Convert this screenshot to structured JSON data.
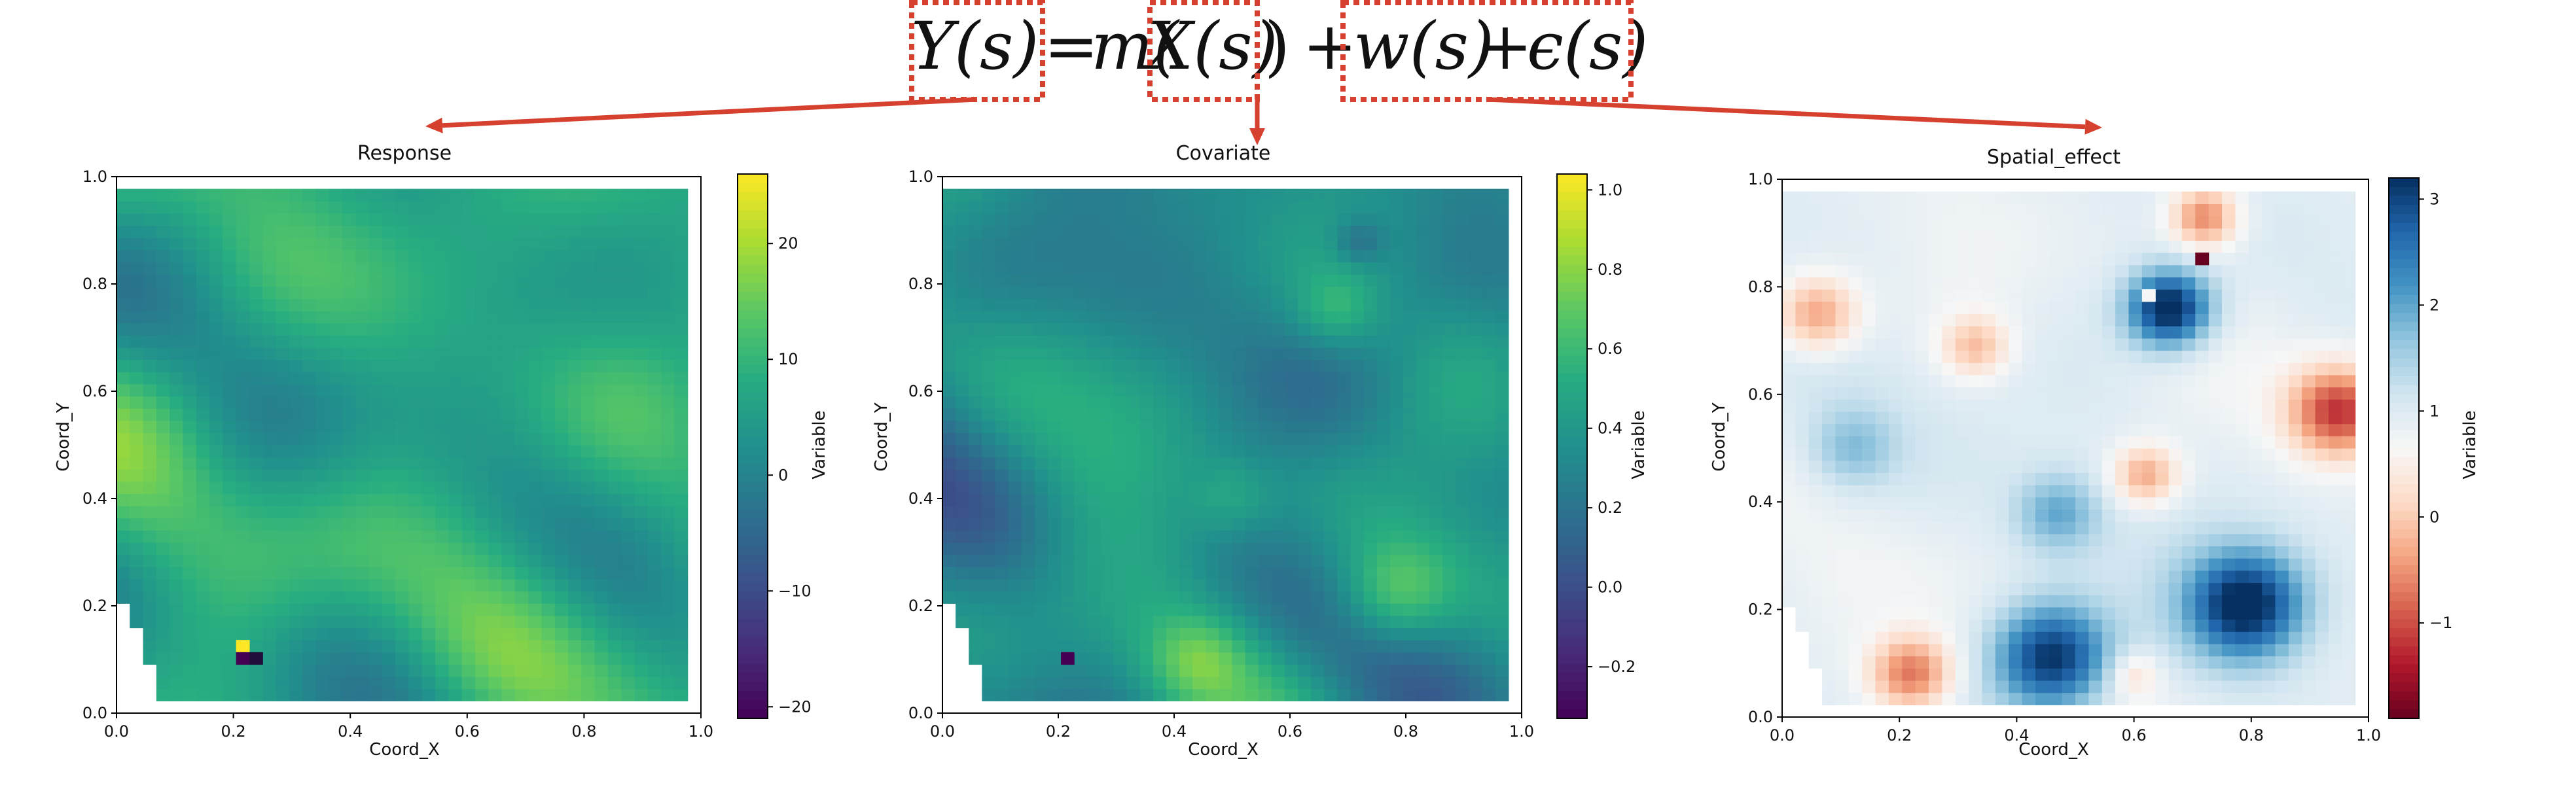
{
  "equation": {
    "parts": [
      "Y(s)",
      "=",
      "m(",
      "X(s)",
      ")",
      "+",
      "w(s)",
      "+",
      "ϵ(s)"
    ],
    "highlight_color": "#d6402f",
    "arrow_color": "#d6402f"
  },
  "chart_data": [
    {
      "type": "heatmap",
      "title": "Response",
      "xlabel": "Coord_X",
      "ylabel": "Coord_Y",
      "xlim": [
        0.0,
        1.0
      ],
      "ylim": [
        0.0,
        1.0
      ],
      "x_ticks": [
        "0.0",
        "0.2",
        "0.4",
        "0.6",
        "0.8",
        "1.0"
      ],
      "y_ticks": [
        "0.0",
        "0.2",
        "0.4",
        "0.6",
        "0.8",
        "1.0"
      ],
      "colormap": "viridis",
      "colorbar": {
        "label": "Variable",
        "range": [
          -21,
          26
        ],
        "ticks": [
          "20",
          "10",
          "0",
          "−10",
          "−20"
        ]
      },
      "grid": false,
      "note_values": {
        "max_cell": 25,
        "min_cell": -20
      }
    },
    {
      "type": "heatmap",
      "title": "Covariate",
      "xlabel": "Coord_X",
      "ylabel": "Coord_Y",
      "xlim": [
        0.0,
        1.0
      ],
      "ylim": [
        0.0,
        1.0
      ],
      "x_ticks": [
        "0.0",
        "0.2",
        "0.4",
        "0.6",
        "0.8",
        "1.0"
      ],
      "y_ticks": [
        "0.0",
        "0.2",
        "0.4",
        "0.6",
        "0.8",
        "1.0"
      ],
      "colormap": "viridis",
      "colorbar": {
        "label": "Variable",
        "range": [
          -0.33,
          1.04
        ],
        "ticks": [
          "1.0",
          "0.8",
          "0.6",
          "0.4",
          "0.2",
          "0.0",
          "−0.2"
        ]
      },
      "grid": false
    },
    {
      "type": "heatmap",
      "title": "Spatial_effect",
      "xlabel": "Coord_X",
      "ylabel": "Coord_Y",
      "xlim": [
        0.0,
        1.0
      ],
      "ylim": [
        0.0,
        1.0
      ],
      "x_ticks": [
        "0.0",
        "0.2",
        "0.4",
        "0.6",
        "0.8",
        "1.0"
      ],
      "y_ticks": [
        "0.0",
        "0.2",
        "0.4",
        "0.6",
        "0.8",
        "1.0"
      ],
      "colormap": "RdBu",
      "colorbar": {
        "label": "Variable",
        "range": [
          -1.9,
          3.2
        ],
        "ticks": [
          "3",
          "2",
          "1",
          "0",
          "−1"
        ]
      },
      "grid": false
    }
  ]
}
